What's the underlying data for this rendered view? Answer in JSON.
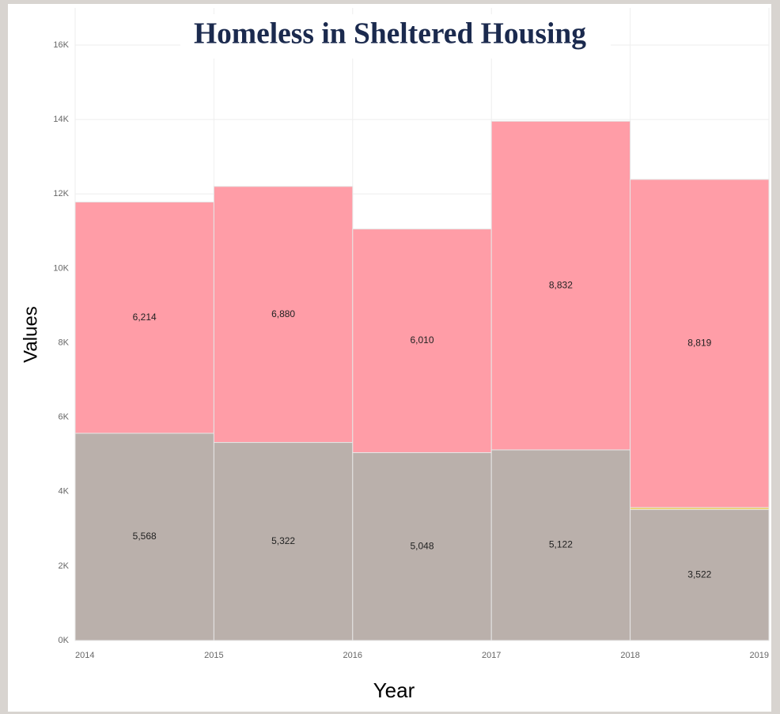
{
  "chart_data": {
    "type": "histogram",
    "title": "Homeless in Sheltered Housing",
    "x_label": "Year",
    "y_label": "Values",
    "bins": [
      2014,
      2015,
      2016,
      2017,
      2018,
      2019
    ],
    "xticks": [
      2014,
      2015,
      2016,
      2017,
      2018,
      2019
    ],
    "xlim": [
      2014,
      2019
    ],
    "ylim": [
      0,
      17000
    ],
    "yticks": [
      {
        "value": 0,
        "label": "0K"
      },
      {
        "value": 2000,
        "label": "2K"
      },
      {
        "value": 4000,
        "label": "4K"
      },
      {
        "value": 6000,
        "label": "6K"
      },
      {
        "value": 8000,
        "label": "8K"
      },
      {
        "value": 10000,
        "label": "10K"
      },
      {
        "value": 12000,
        "label": "12K"
      },
      {
        "value": 14000,
        "label": "14K"
      },
      {
        "value": 16000,
        "label": "16K"
      }
    ],
    "grid": true,
    "stacked": true,
    "series": [
      {
        "color": "#bab0ab",
        "values": [
          5568,
          5322,
          5048,
          5122,
          3522
        ],
        "value_labels": [
          "5,568",
          "5,322",
          "5,048",
          "5,122",
          "3,522"
        ]
      },
      {
        "color": "#edc948",
        "values": [
          0,
          0,
          0,
          0,
          50
        ]
      },
      {
        "color": "#ff9da7",
        "values": [
          6214,
          6880,
          6010,
          8832,
          8819
        ],
        "value_labels": [
          "6,214",
          "6,880",
          "6,010",
          "8,832",
          "8,819"
        ]
      }
    ]
  }
}
